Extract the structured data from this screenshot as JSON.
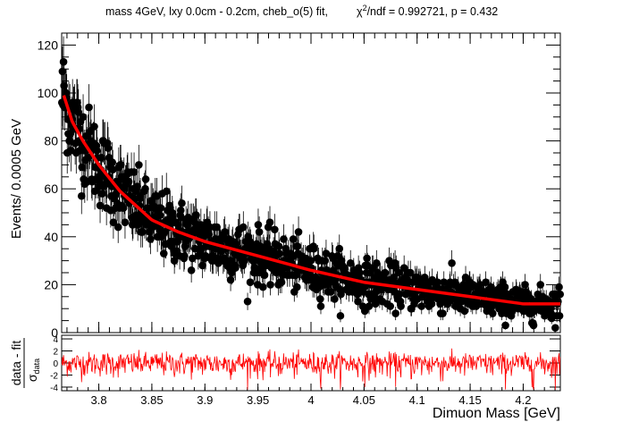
{
  "chart_data": {
    "type": "scatter",
    "title_left": "mass 4GeV, lxy 0.0cm - 0.2cm, cheb_o(5) fit,",
    "title_right_prefix": "χ",
    "title_right_sup": "2",
    "title_right_rest": "/ndf = 0.992721, p = 0.432",
    "xlabel": "Dimuon Mass [GeV]",
    "ylabel": "Events/ 0.0005 GeV",
    "xlim": [
      3.765,
      4.235
    ],
    "ylim": [
      0,
      125
    ],
    "xticks": [
      "3.8",
      "3.85",
      "3.9",
      "3.95",
      "4",
      "4.05",
      "4.1",
      "4.15",
      "4.2"
    ],
    "xtick_values": [
      3.8,
      3.85,
      3.9,
      3.95,
      4.0,
      4.05,
      4.1,
      4.15,
      4.2
    ],
    "yticks": [
      "0",
      "20",
      "40",
      "60",
      "80",
      "100",
      "120"
    ],
    "ytick_values": [
      0,
      20,
      40,
      60,
      80,
      100,
      120
    ],
    "fit": {
      "name": "cheb_o(5) fit",
      "color": "#ff0000",
      "x": [
        3.767,
        3.775,
        3.785,
        3.8,
        3.82,
        3.85,
        3.875,
        3.9,
        3.95,
        4.0,
        4.05,
        4.1,
        4.15,
        4.2,
        4.235
      ],
      "y": [
        99,
        88,
        80,
        70,
        59,
        47,
        42,
        38,
        32,
        26,
        21,
        18,
        15,
        12,
        12
      ]
    },
    "data_points": {
      "n_bins": 940,
      "marker_color": "#000000",
      "note_shape": "black points with Poisson error bars scattered around the fit"
    },
    "pull": {
      "ylabel_num": "data - fit",
      "ylabel_den": "σ",
      "ylabel_den_sub": "data",
      "ylim": [
        -4.6,
        4.6
      ],
      "yticks": [
        "4",
        "2",
        "0",
        "-2",
        "-4"
      ],
      "ytick_values": [
        4,
        2,
        0,
        -2,
        -4
      ],
      "color": "#ff0000"
    }
  }
}
